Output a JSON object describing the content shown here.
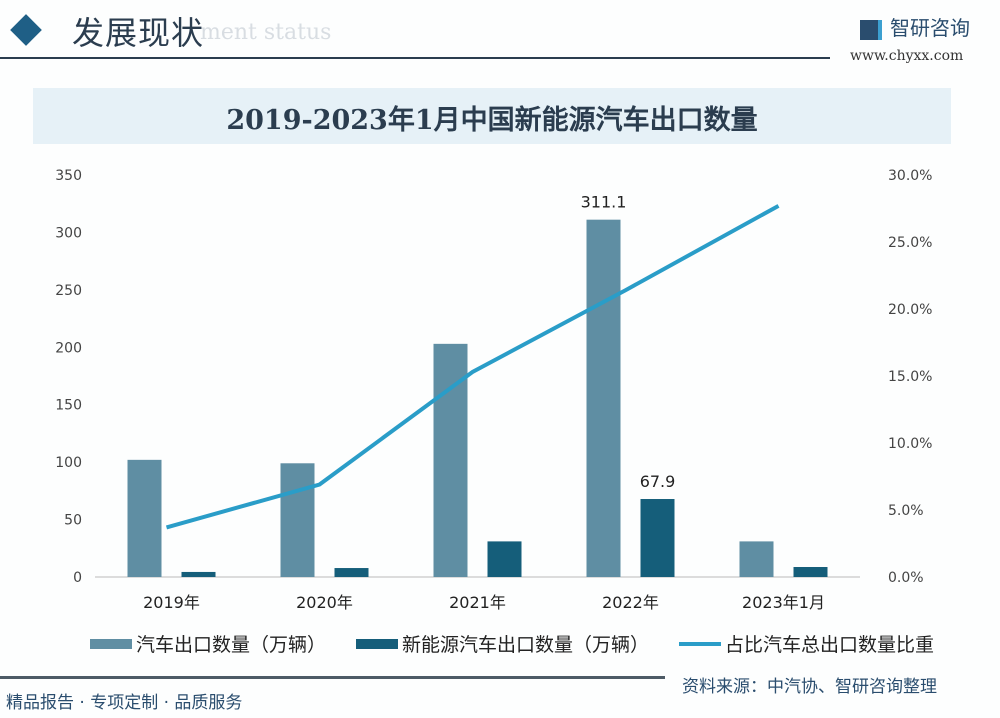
{
  "header": {
    "title": "发展现状",
    "subtitle": "ment status",
    "brand": "智研咨询",
    "url": "www.chyxx.com"
  },
  "chart_data": {
    "type": "bar+line",
    "title": "2019-2023年1月中国新能源汽车出口数量",
    "categories": [
      "2019年",
      "2020年",
      "2021年",
      "2022年",
      "2023年1月"
    ],
    "series": [
      {
        "name": "汽车出口数量（万辆）",
        "type": "bar",
        "axis": "left",
        "color": "#5f8ea3",
        "values": [
          102,
          99,
          203,
          311.1,
          31
        ]
      },
      {
        "name": "新能源汽车出口数量（万辆）",
        "type": "bar",
        "axis": "left",
        "color": "#155e7a",
        "values": [
          4.4,
          7.8,
          31,
          67.9,
          8.7
        ]
      },
      {
        "name": "占比汽车总出口数量比重",
        "type": "line",
        "axis": "right",
        "color": "#2a9dc8",
        "values": [
          3.7,
          6.9,
          15.3,
          21.4,
          27.7
        ]
      }
    ],
    "data_labels": [
      {
        "series": 0,
        "index": 3,
        "text": "311.1"
      },
      {
        "series": 1,
        "index": 3,
        "text": "67.9"
      }
    ],
    "ylim": [
      0,
      350
    ],
    "yticks": [
      "0",
      "50",
      "100",
      "150",
      "200",
      "250",
      "300",
      "350"
    ],
    "y2lim": [
      0,
      30
    ],
    "y2ticks": [
      "0.0%",
      "5.0%",
      "10.0%",
      "15.0%",
      "20.0%",
      "25.0%",
      "30.0%"
    ],
    "grid": false,
    "legend": "bottom"
  },
  "footer": {
    "slogan": "精品报告 · 专项定制 · 品质服务",
    "source": "资料来源：中汽协、智研咨询整理"
  }
}
